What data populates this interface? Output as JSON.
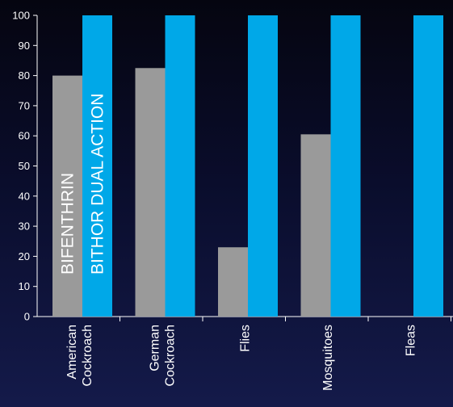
{
  "chart_data": {
    "type": "bar",
    "categories": [
      [
        "American",
        "Cockroach"
      ],
      [
        "German",
        "Cockroach"
      ],
      [
        "Flies"
      ],
      [
        "Mosquitoes"
      ],
      [
        "Fleas"
      ]
    ],
    "series": [
      {
        "name": "BIFENTHRIN",
        "color": "#9a9a9a",
        "values": [
          80,
          82.5,
          23,
          60.5,
          0
        ]
      },
      {
        "name": "BITHOR DUAL ACTION",
        "color": "#00a8e8",
        "values": [
          100,
          100,
          100,
          100,
          100
        ]
      }
    ],
    "ylim": [
      0,
      100
    ],
    "yticks": [
      0,
      10,
      20,
      30,
      40,
      50,
      60,
      70,
      80,
      90,
      100
    ],
    "grid": false,
    "legend": "in-bar vertical labels"
  }
}
